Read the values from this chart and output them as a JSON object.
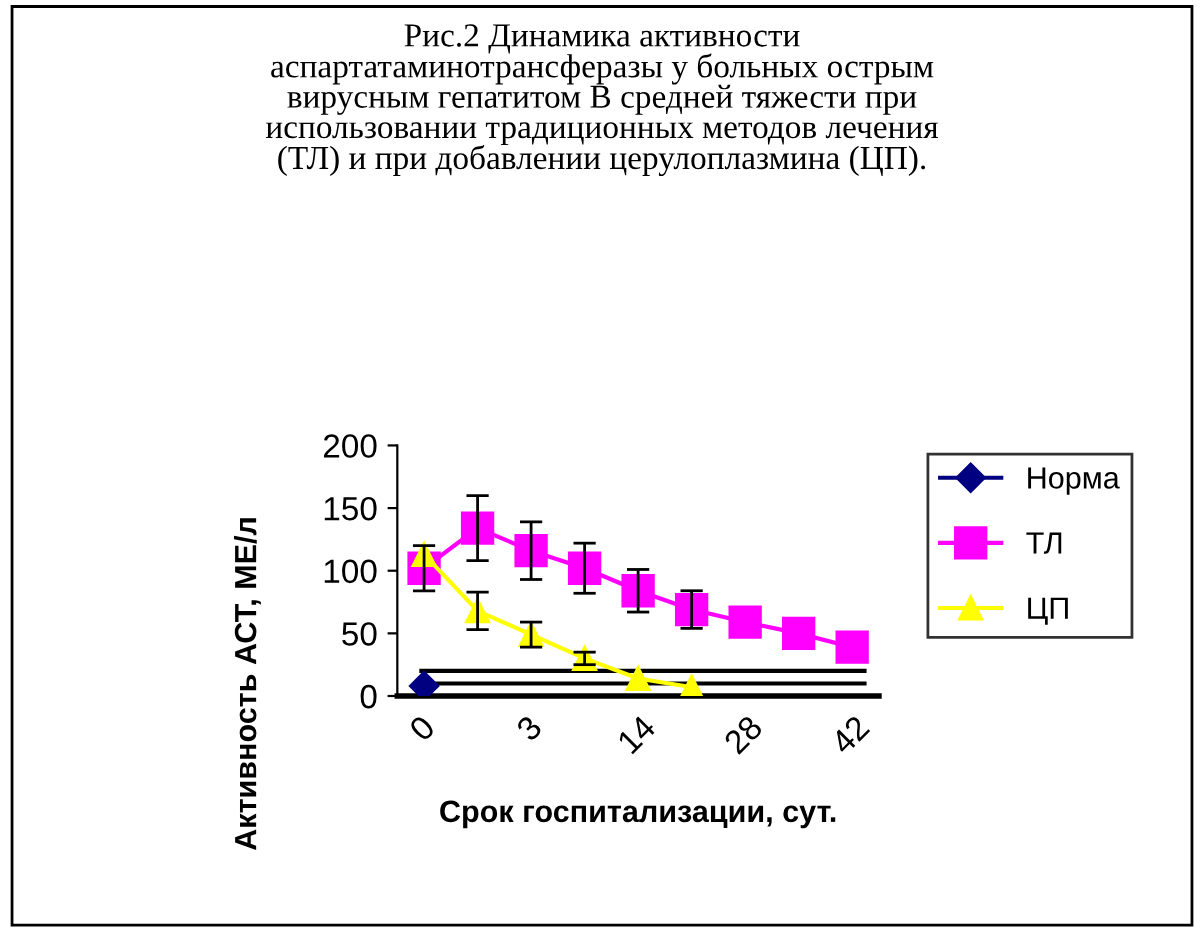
{
  "chart_data": {
    "type": "line",
    "title": "Рис.2 Динамика активности\nаспартатаминотрансферазы у больных острым\nвирусным гепатитом В средней тяжести при\nиспользовании традиционных методов лечения\n(ТЛ) и при добавлении церулоплазмина (ЦП).",
    "xlabel": "Срок госпитализации, сут.",
    "ylabel": "Активность АСТ, МЕ/л",
    "categories": [
      "0",
      null,
      "3",
      null,
      "14",
      null,
      "28",
      null,
      "42"
    ],
    "series": [
      {
        "name": "Норма",
        "color": "#000080",
        "marker": "diamond",
        "values": [
          8,
          null,
          null,
          null,
          null,
          null,
          null,
          null,
          null
        ]
      },
      {
        "name": "ТЛ",
        "color": "#ff00ff",
        "marker": "square",
        "values": [
          102,
          134,
          116,
          102,
          84,
          69,
          59,
          50,
          39
        ],
        "errors": [
          18,
          26,
          23,
          20,
          17,
          15,
          null,
          null,
          null
        ]
      },
      {
        "name": "ЦП",
        "color": "#ffff00",
        "marker": "triangle",
        "values": [
          113,
          68,
          49,
          30,
          14,
          7,
          null,
          null,
          null
        ],
        "errors": [
          null,
          15,
          10,
          5,
          null,
          null,
          null,
          null,
          null
        ]
      }
    ],
    "ref_lines": [
      {
        "axis": "y",
        "value": 10,
        "color": "#000000"
      },
      {
        "axis": "y",
        "value": 20,
        "color": "#000000"
      }
    ],
    "ylim": [
      0,
      200
    ],
    "yticks": [
      0,
      50,
      100,
      150,
      200
    ],
    "grid": false,
    "legend": "right"
  }
}
